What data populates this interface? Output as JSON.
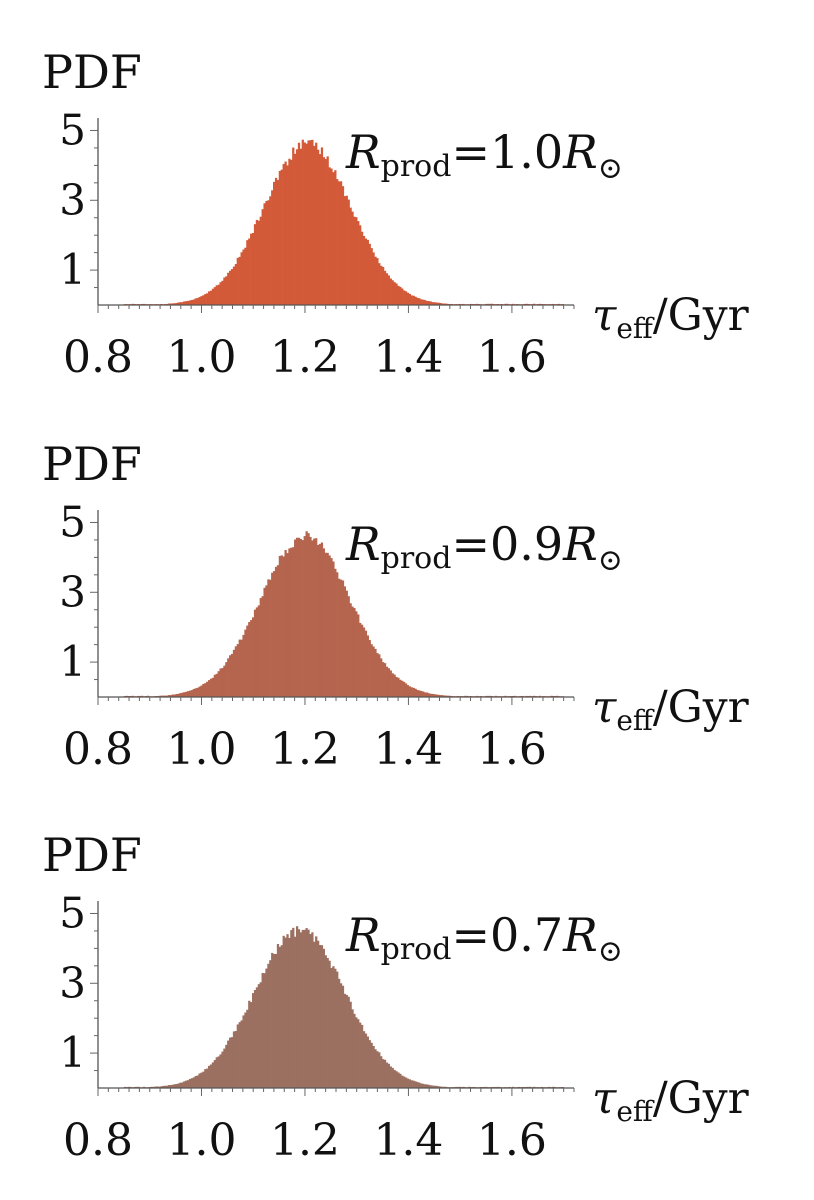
{
  "chart_data": [
    {
      "type": "bar",
      "ylabel": "PDF",
      "annotation": {
        "symbol": "R",
        "subscript": "prod",
        "value": "=1.0",
        "unit_symbol": "R",
        "unit_subscript": "⊙"
      },
      "xlabel": {
        "symbol": "τ",
        "subscript": "eff",
        "unit": "/Gyr"
      },
      "xlim": [
        0.8,
        1.72
      ],
      "ylim": [
        0,
        5.3
      ],
      "xticks": [
        "0.8",
        "1.0",
        "1.2",
        "1.4",
        "1.6"
      ],
      "yticks": [
        "1",
        "3",
        "5"
      ],
      "color": "#d35a38",
      "distribution": {
        "mean": 1.205,
        "sd": 0.085,
        "peak": 4.6,
        "bins": 230
      }
    },
    {
      "type": "bar",
      "ylabel": "PDF",
      "annotation": {
        "symbol": "R",
        "subscript": "prod",
        "value": "=0.9",
        "unit_symbol": "R",
        "unit_subscript": "⊙"
      },
      "xlabel": {
        "symbol": "τ",
        "subscript": "eff",
        "unit": "/Gyr"
      },
      "xlim": [
        0.8,
        1.72
      ],
      "ylim": [
        0,
        5.3
      ],
      "xticks": [
        "0.8",
        "1.0",
        "1.2",
        "1.4",
        "1.6"
      ],
      "yticks": [
        "1",
        "3",
        "5"
      ],
      "color": "#b5654e",
      "distribution": {
        "mean": 1.2,
        "sd": 0.087,
        "peak": 4.6,
        "bins": 230
      }
    },
    {
      "type": "bar",
      "ylabel": "PDF",
      "annotation": {
        "symbol": "R",
        "subscript": "prod",
        "value": "=0.7",
        "unit_symbol": "R",
        "unit_subscript": "⊙"
      },
      "xlabel": {
        "symbol": "τ",
        "subscript": "eff",
        "unit": "/Gyr"
      },
      "xlim": [
        0.8,
        1.72
      ],
      "ylim": [
        0,
        5.3
      ],
      "xticks": [
        "0.8",
        "1.0",
        "1.2",
        "1.4",
        "1.6"
      ],
      "yticks": [
        "1",
        "3",
        "5"
      ],
      "color": "#9c7060",
      "distribution": {
        "mean": 1.19,
        "sd": 0.088,
        "peak": 4.5,
        "bins": 230
      }
    }
  ]
}
